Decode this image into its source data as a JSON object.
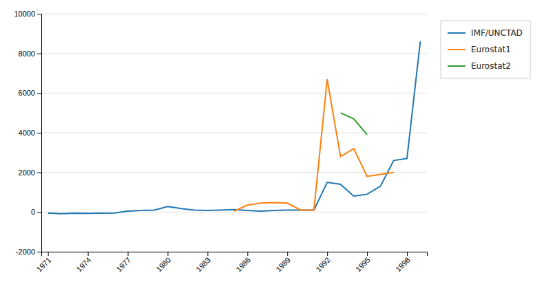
{
  "chart_data": {
    "type": "line",
    "series": [
      {
        "name": "IMF/UNCTAD",
        "x": [
          1971,
          1972,
          1973,
          1974,
          1975,
          1976,
          1977,
          1978,
          1979,
          1980,
          1981,
          1982,
          1983,
          1984,
          1985,
          1986,
          1987,
          1988,
          1989,
          1990,
          1991,
          1992,
          1993,
          1994,
          1995,
          1996,
          1997,
          1998,
          1999
        ],
        "values": [
          -50,
          -80,
          -60,
          -70,
          -60,
          -50,
          50,
          80,
          100,
          280,
          180,
          100,
          80,
          100,
          120,
          80,
          50,
          80,
          100,
          100,
          100,
          1500,
          1400,
          800,
          900,
          1300,
          2600,
          2700,
          8600
        ]
      },
      {
        "name": "Eurostat1",
        "x": [
          1985,
          1986,
          1987,
          1988,
          1989,
          1990,
          1991,
          1992,
          1993,
          1994,
          1995,
          1996,
          1997
        ],
        "values": [
          50,
          350,
          450,
          480,
          450,
          100,
          100,
          6700,
          2800,
          3200,
          1800,
          1900,
          2000
        ]
      },
      {
        "name": "Eurostat2",
        "x": [
          1993,
          1994,
          1995
        ],
        "values": [
          5000,
          4700,
          3900
        ]
      }
    ],
    "xlim": [
      1970.5,
      1999.5
    ],
    "xticks": [
      1971,
      1974,
      1977,
      1980,
      1983,
      1986,
      1989,
      1992,
      1995,
      1998
    ],
    "ylim": [
      -2000,
      10000
    ],
    "yticks": [
      -2000,
      0,
      2000,
      4000,
      6000,
      8000,
      10000
    ],
    "grid": "y",
    "legend": "right"
  }
}
